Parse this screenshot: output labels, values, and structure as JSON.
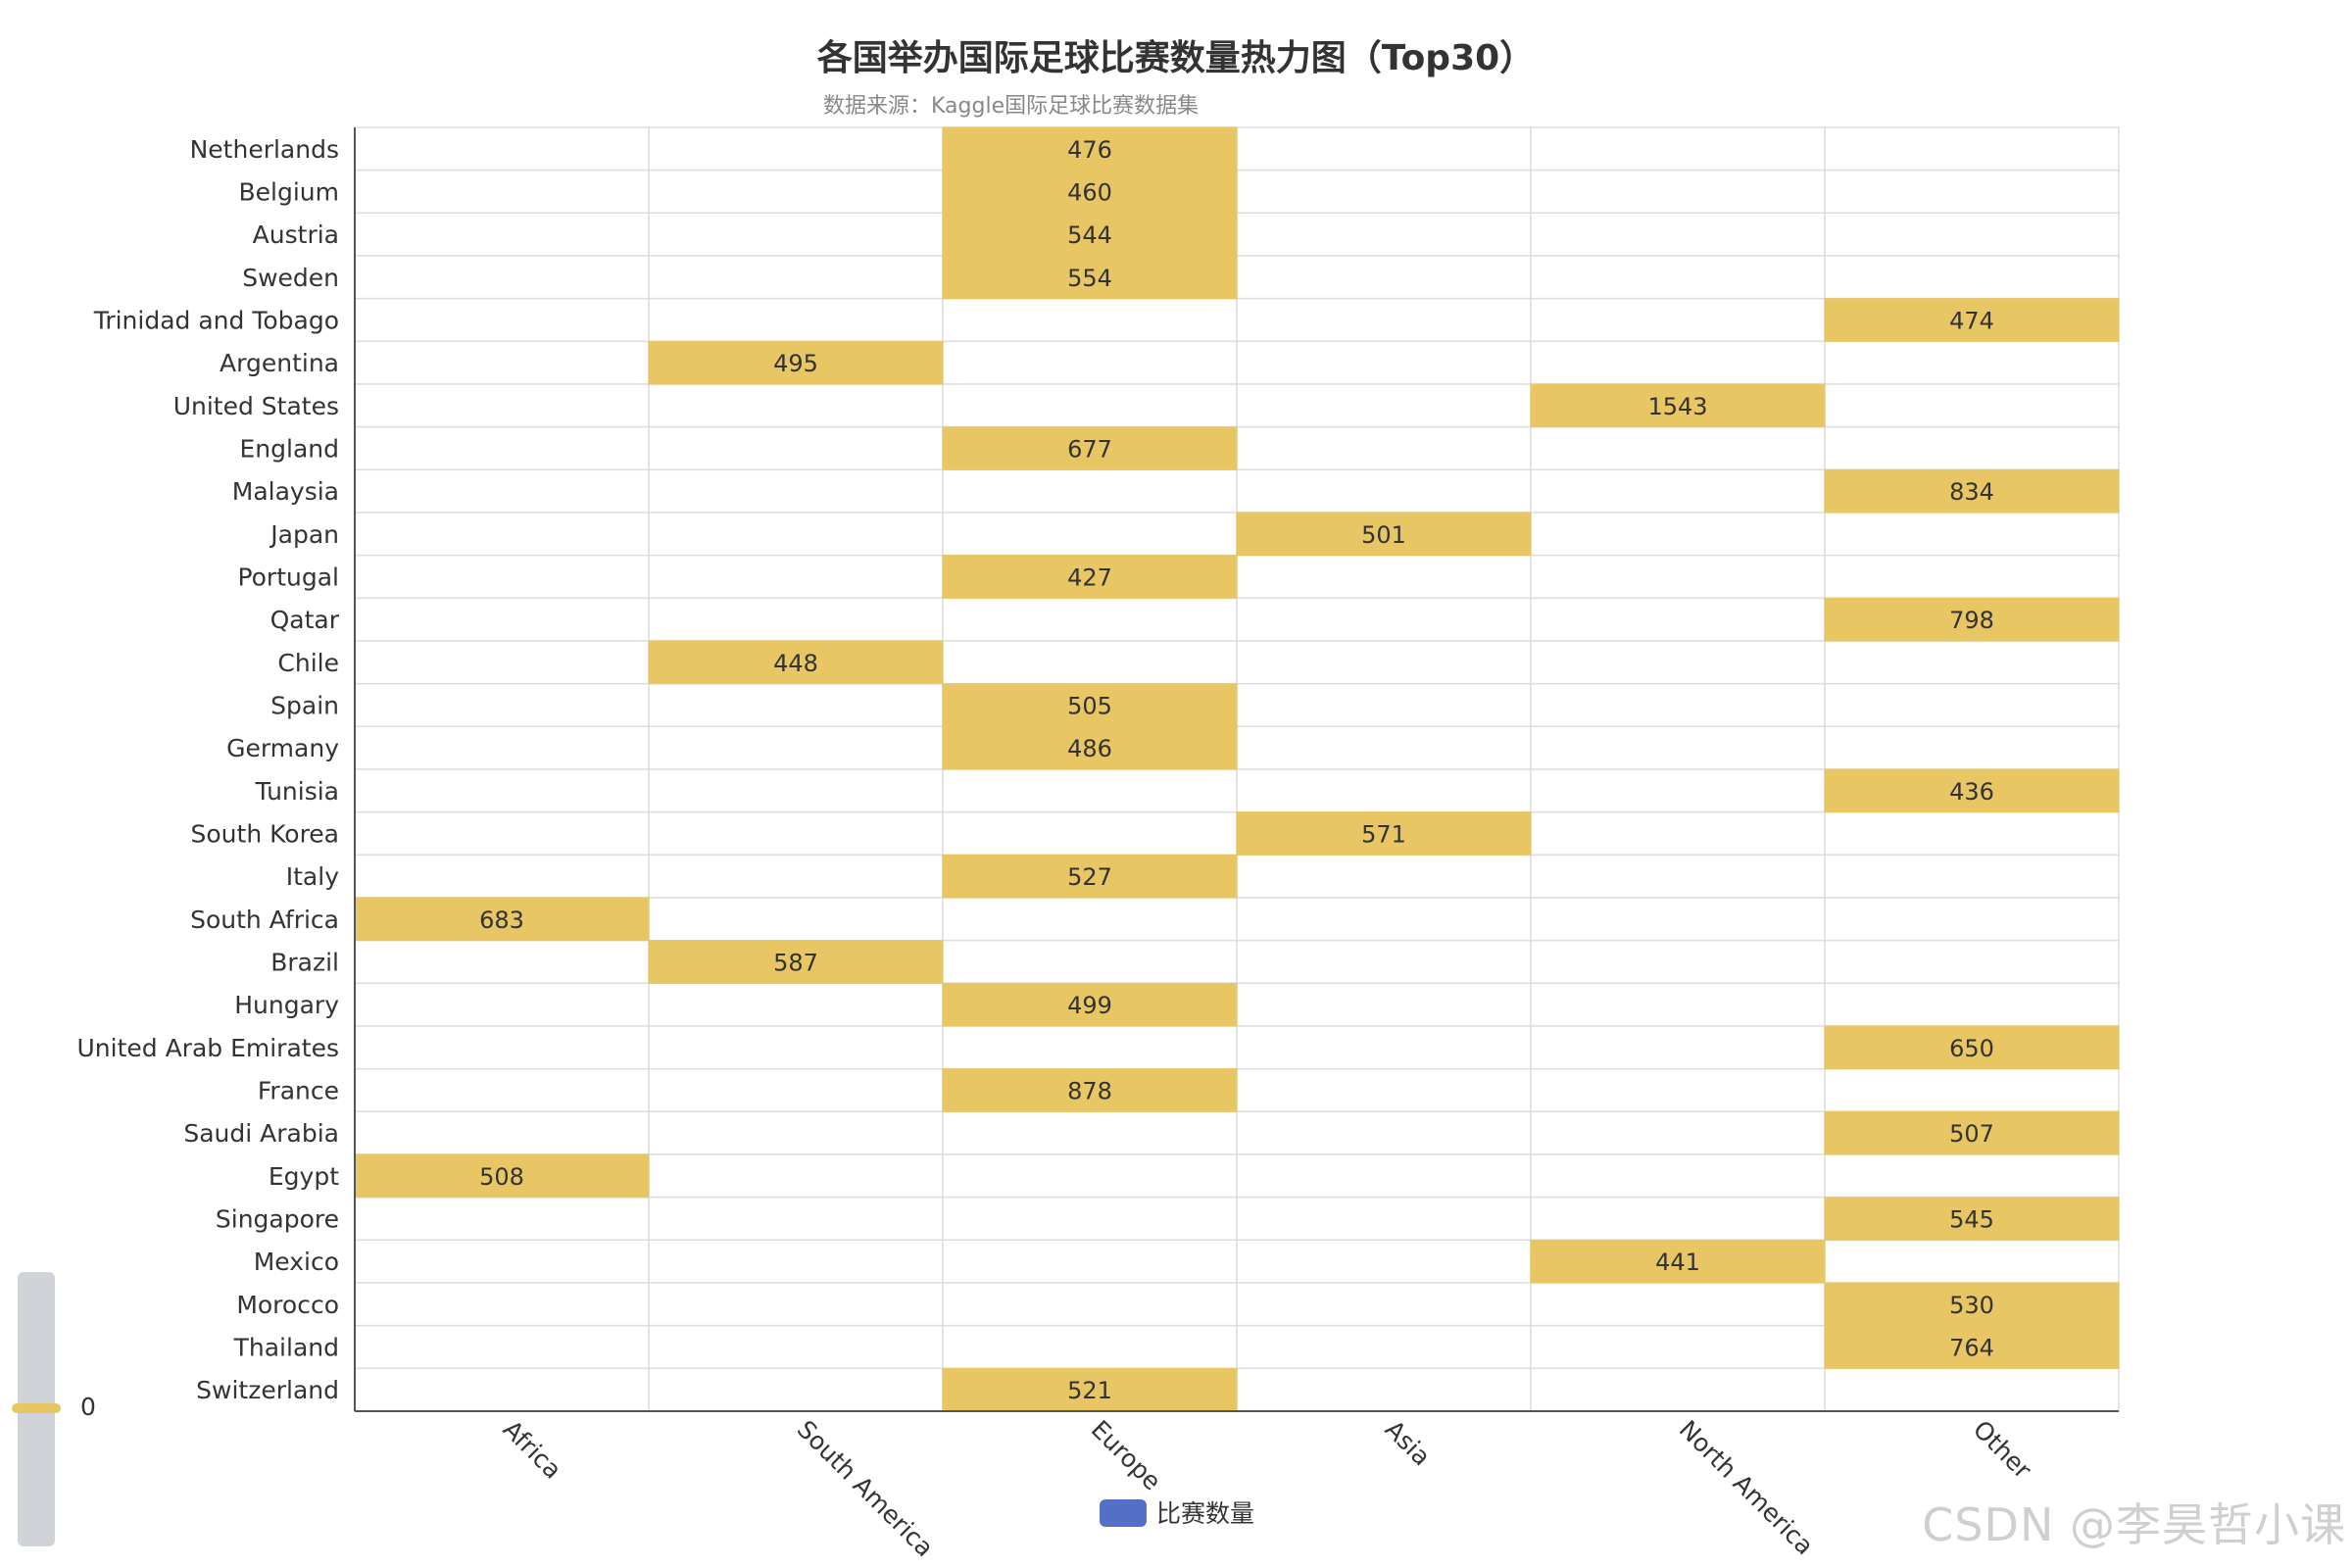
{
  "chart_data": {
    "type": "heatmap",
    "title": "各国举办国际足球比赛数量热力图（Top30）",
    "subtitle": "数据来源：Kaggle国际足球比赛数据集",
    "x_categories": [
      "Africa",
      "South America",
      "Europe",
      "Asia",
      "North America",
      "Other"
    ],
    "y_categories": [
      "Netherlands",
      "Belgium",
      "Austria",
      "Sweden",
      "Trinidad and Tobago",
      "Argentina",
      "United States",
      "England",
      "Malaysia",
      "Japan",
      "Portugal",
      "Qatar",
      "Chile",
      "Spain",
      "Germany",
      "Tunisia",
      "South Korea",
      "Italy",
      "South Africa",
      "Brazil",
      "Hungary",
      "United Arab Emirates",
      "France",
      "Saudi Arabia",
      "Egypt",
      "Singapore",
      "Mexico",
      "Morocco",
      "Thailand",
      "Switzerland"
    ],
    "cells": [
      {
        "country": "Netherlands",
        "region": "Europe",
        "value": 476
      },
      {
        "country": "Belgium",
        "region": "Europe",
        "value": 460
      },
      {
        "country": "Austria",
        "region": "Europe",
        "value": 544
      },
      {
        "country": "Sweden",
        "region": "Europe",
        "value": 554
      },
      {
        "country": "Trinidad and Tobago",
        "region": "Other",
        "value": 474
      },
      {
        "country": "Argentina",
        "region": "South America",
        "value": 495
      },
      {
        "country": "United States",
        "region": "North America",
        "value": 1543
      },
      {
        "country": "England",
        "region": "Europe",
        "value": 677
      },
      {
        "country": "Malaysia",
        "region": "Other",
        "value": 834
      },
      {
        "country": "Japan",
        "region": "Asia",
        "value": 501
      },
      {
        "country": "Portugal",
        "region": "Europe",
        "value": 427
      },
      {
        "country": "Qatar",
        "region": "Other",
        "value": 798
      },
      {
        "country": "Chile",
        "region": "South America",
        "value": 448
      },
      {
        "country": "Spain",
        "region": "Europe",
        "value": 505
      },
      {
        "country": "Germany",
        "region": "Europe",
        "value": 486
      },
      {
        "country": "Tunisia",
        "region": "Other",
        "value": 436
      },
      {
        "country": "South Korea",
        "region": "Asia",
        "value": 571
      },
      {
        "country": "Italy",
        "region": "Europe",
        "value": 527
      },
      {
        "country": "South Africa",
        "region": "Africa",
        "value": 683
      },
      {
        "country": "Brazil",
        "region": "South America",
        "value": 587
      },
      {
        "country": "Hungary",
        "region": "Europe",
        "value": 499
      },
      {
        "country": "United Arab Emirates",
        "region": "Other",
        "value": 650
      },
      {
        "country": "France",
        "region": "Europe",
        "value": 878
      },
      {
        "country": "Saudi Arabia",
        "region": "Other",
        "value": 507
      },
      {
        "country": "Egypt",
        "region": "Africa",
        "value": 508
      },
      {
        "country": "Singapore",
        "region": "Other",
        "value": 545
      },
      {
        "country": "Mexico",
        "region": "North America",
        "value": 441
      },
      {
        "country": "Morocco",
        "region": "Other",
        "value": 530
      },
      {
        "country": "Thailand",
        "region": "Other",
        "value": 764
      },
      {
        "country": "Switzerland",
        "region": "Europe",
        "value": 521
      }
    ],
    "legend": {
      "label": "比赛数量",
      "color": "#5470c6",
      "position": "bottom-center"
    },
    "visual_map": {
      "min_label": "0",
      "handle_value": 0,
      "handle_color": "#e8c663",
      "track_color": "#d0d4d8",
      "position": "bottom-left"
    },
    "colors": {
      "cell_fill": "#e8c663",
      "empty_fill": "#ffffff",
      "grid_line": "#dddddd",
      "axis_line": "#555555",
      "label_text": "#333333"
    },
    "grid": true
  },
  "watermark": "CSDN @李昊哲小课"
}
